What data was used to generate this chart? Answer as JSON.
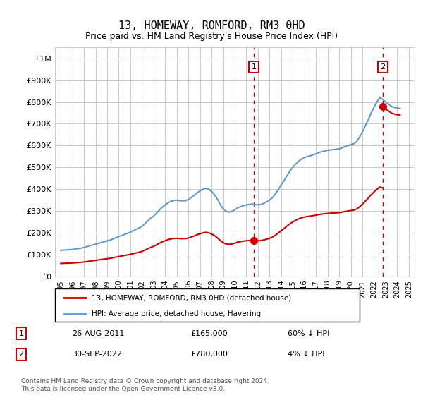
{
  "title": "13, HOMEWAY, ROMFORD, RM3 0HD",
  "subtitle": "Price paid vs. HM Land Registry's House Price Index (HPI)",
  "hpi_label": "HPI: Average price, detached house, Havering",
  "property_label": "13, HOMEWAY, ROMFORD, RM3 0HD (detached house)",
  "footer": "Contains HM Land Registry data © Crown copyright and database right 2024.\nThis data is licensed under the Open Government Licence v3.0.",
  "annotation1_label": "1",
  "annotation1_date": "26-AUG-2011",
  "annotation1_price": "£165,000",
  "annotation1_hpi": "60% ↓ HPI",
  "annotation2_label": "2",
  "annotation2_date": "30-SEP-2022",
  "annotation2_price": "£780,000",
  "annotation2_hpi": "4% ↓ HPI",
  "vline1_x": 2011.65,
  "vline2_x": 2022.75,
  "sale1_x": 2011.65,
  "sale1_y": 165000,
  "sale2_x": 2022.75,
  "sale2_y": 780000,
  "ylim": [
    0,
    1050000
  ],
  "xlim": [
    1994.5,
    2025.5
  ],
  "hpi_color": "#6699cc",
  "property_color": "#cc0000",
  "vline_color": "#cc0000",
  "grid_color": "#cccccc",
  "background_color": "#ffffff",
  "hpi_data_x": [
    1995,
    1995.25,
    1995.5,
    1995.75,
    1996,
    1996.25,
    1996.5,
    1996.75,
    1997,
    1997.25,
    1997.5,
    1997.75,
    1998,
    1998.25,
    1998.5,
    1998.75,
    1999,
    1999.25,
    1999.5,
    1999.75,
    2000,
    2000.25,
    2000.5,
    2000.75,
    2001,
    2001.25,
    2001.5,
    2001.75,
    2002,
    2002.25,
    2002.5,
    2002.75,
    2003,
    2003.25,
    2003.5,
    2003.75,
    2004,
    2004.25,
    2004.5,
    2004.75,
    2005,
    2005.25,
    2005.5,
    2005.75,
    2006,
    2006.25,
    2006.5,
    2006.75,
    2007,
    2007.25,
    2007.5,
    2007.75,
    2008,
    2008.25,
    2008.5,
    2008.75,
    2009,
    2009.25,
    2009.5,
    2009.75,
    2010,
    2010.25,
    2010.5,
    2010.75,
    2011,
    2011.25,
    2011.5,
    2011.75,
    2012,
    2012.25,
    2012.5,
    2012.75,
    2013,
    2013.25,
    2013.5,
    2013.75,
    2014,
    2014.25,
    2014.5,
    2014.75,
    2015,
    2015.25,
    2015.5,
    2015.75,
    2016,
    2016.25,
    2016.5,
    2016.75,
    2017,
    2017.25,
    2017.5,
    2017.75,
    2018,
    2018.25,
    2018.5,
    2018.75,
    2019,
    2019.25,
    2019.5,
    2019.75,
    2020,
    2020.25,
    2020.5,
    2020.75,
    2021,
    2021.25,
    2021.5,
    2021.75,
    2022,
    2022.25,
    2022.5,
    2022.75,
    2023,
    2023.25,
    2023.5,
    2023.75,
    2024,
    2024.25
  ],
  "hpi_data_y": [
    120000,
    121000,
    122000,
    123000,
    124000,
    126000,
    128000,
    130000,
    133000,
    137000,
    141000,
    145000,
    148000,
    152000,
    156000,
    160000,
    163000,
    167000,
    172000,
    178000,
    183000,
    188000,
    193000,
    198000,
    203000,
    210000,
    216000,
    222000,
    230000,
    242000,
    255000,
    267000,
    277000,
    290000,
    305000,
    318000,
    328000,
    338000,
    345000,
    348000,
    350000,
    348000,
    347000,
    348000,
    352000,
    362000,
    372000,
    383000,
    392000,
    400000,
    405000,
    400000,
    390000,
    375000,
    355000,
    330000,
    310000,
    298000,
    295000,
    298000,
    305000,
    315000,
    320000,
    325000,
    328000,
    330000,
    332000,
    330000,
    328000,
    330000,
    335000,
    342000,
    350000,
    362000,
    378000,
    398000,
    420000,
    440000,
    462000,
    483000,
    500000,
    515000,
    528000,
    538000,
    545000,
    550000,
    553000,
    558000,
    562000,
    568000,
    572000,
    575000,
    578000,
    580000,
    582000,
    583000,
    585000,
    590000,
    595000,
    600000,
    605000,
    608000,
    618000,
    638000,
    662000,
    690000,
    718000,
    748000,
    775000,
    800000,
    820000,
    812000,
    800000,
    790000,
    780000,
    775000,
    772000,
    770000
  ],
  "yticks": [
    0,
    100000,
    200000,
    300000,
    400000,
    500000,
    600000,
    700000,
    800000,
    900000,
    1000000
  ],
  "ytick_labels": [
    "£0",
    "£100K",
    "£200K",
    "£300K",
    "£400K",
    "£500K",
    "£600K",
    "£700K",
    "£800K",
    "£900K",
    "£1M"
  ],
  "xticks": [
    1995,
    1996,
    1997,
    1998,
    1999,
    2000,
    2001,
    2002,
    2003,
    2004,
    2005,
    2006,
    2007,
    2008,
    2009,
    2010,
    2011,
    2012,
    2013,
    2014,
    2015,
    2016,
    2017,
    2018,
    2019,
    2020,
    2021,
    2022,
    2023,
    2024,
    2025
  ]
}
